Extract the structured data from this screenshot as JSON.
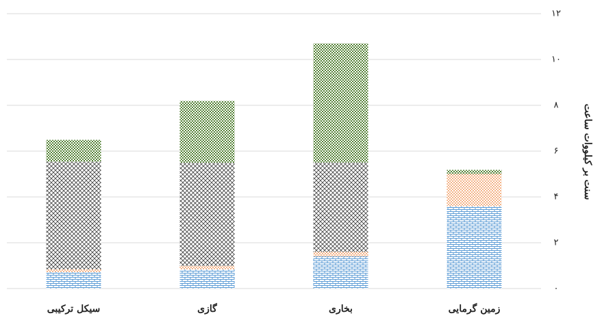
{
  "chart_data": {
    "type": "stacked_bar",
    "y_label": "سنت بر کیلووات ساعت",
    "categories": [
      "سیکل ترکیبی",
      "گازی",
      "بخاری",
      "زمین گرمایی"
    ],
    "series": [
      {
        "color": "#5b9bd5",
        "pattern": "brick",
        "values": [
          0.72,
          0.84,
          1.4,
          3.6
        ]
      },
      {
        "color": "#ed7d31",
        "pattern": "dots",
        "values": [
          0.12,
          0.15,
          0.2,
          1.4
        ]
      },
      {
        "color": "#404040",
        "pattern": "crosshatch",
        "values": [
          4.7,
          4.5,
          3.9,
          0
        ]
      },
      {
        "color": "#548235",
        "pattern": "checker",
        "values": [
          0.95,
          2.7,
          5.2,
          0.18
        ]
      }
    ],
    "ylim": [
      0,
      12
    ],
    "yticks": [
      {
        "value": 0,
        "label": "۰"
      },
      {
        "value": 2,
        "label": "۲"
      },
      {
        "value": 4,
        "label": "۴"
      },
      {
        "value": 6,
        "label": "۶"
      },
      {
        "value": 8,
        "label": "۸"
      },
      {
        "value": 10,
        "label": "۱۰"
      },
      {
        "value": 12,
        "label": "۱۲"
      }
    ],
    "grid": true
  }
}
